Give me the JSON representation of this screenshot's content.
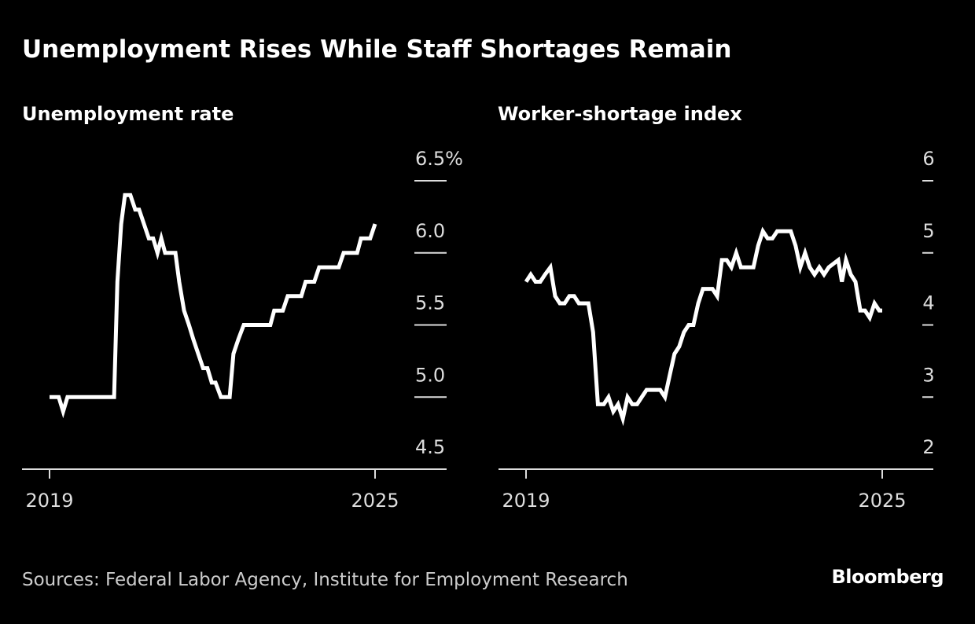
{
  "title": "Unemployment Rises While Staff Shortages Remain",
  "source": "Sources: Federal Labor Agency, Institute for Employment Research",
  "logo": "Bloomberg",
  "colors": {
    "background": "#000000",
    "line": "#ffffff",
    "axis": "#dddddd"
  },
  "chart_data": [
    {
      "type": "line",
      "title": "Unemployment rate",
      "ylim": [
        4.5,
        6.5
      ],
      "yticks": [
        "6.5%",
        "6.0",
        "5.5",
        "5.0",
        "4.5"
      ],
      "ytick_values": [
        6.5,
        6.0,
        5.5,
        5.0,
        4.5
      ],
      "xlim": [
        2019,
        2025
      ],
      "xticks": [
        "2019",
        "2025"
      ],
      "xtick_values": [
        2019,
        2025
      ],
      "series": [
        {
          "name": "Unemployment rate",
          "x": [
            2019.0,
            2019.17,
            2019.25,
            2019.33,
            2020.19,
            2020.25,
            2020.32,
            2020.39,
            2020.49,
            2020.58,
            2020.65,
            2020.74,
            2020.83,
            2020.91,
            2020.99,
            2021.06,
            2021.13,
            2021.32,
            2021.39,
            2021.48,
            2021.57,
            2021.65,
            2021.74,
            2021.83,
            2021.91,
            2021.99,
            2022.06,
            2022.16,
            2022.32,
            2022.39,
            2022.48,
            2022.58,
            2023.07,
            2023.14,
            2023.3,
            2023.39,
            2023.64,
            2023.72,
            2023.88,
            2023.97,
            2024.33,
            2024.42,
            2024.67,
            2024.74,
            2024.91,
            2025.0
          ],
          "y": [
            5.0,
            5.0,
            4.9,
            5.0,
            5.0,
            5.8,
            6.2,
            6.4,
            6.4,
            6.3,
            6.3,
            6.2,
            6.1,
            6.1,
            6.0,
            6.1,
            6.0,
            6.0,
            5.8,
            5.6,
            5.5,
            5.4,
            5.3,
            5.2,
            5.2,
            5.1,
            5.1,
            5.0,
            5.0,
            5.3,
            5.4,
            5.5,
            5.5,
            5.6,
            5.6,
            5.7,
            5.7,
            5.8,
            5.8,
            5.9,
            5.9,
            6.0,
            6.0,
            6.1,
            6.1,
            6.2
          ]
        }
      ]
    },
    {
      "type": "line",
      "title": "Worker-shortage index",
      "ylim": [
        2,
        6
      ],
      "yticks": [
        "6",
        "5",
        "4",
        "3",
        "2"
      ],
      "ytick_values": [
        6,
        5,
        4,
        3,
        2
      ],
      "xlim": [
        2019,
        2025
      ],
      "xticks": [
        "2019",
        "2025"
      ],
      "xtick_values": [
        2019,
        2025
      ],
      "series": [
        {
          "name": "Worker-shortage index",
          "x": [
            2019.0,
            2019.08,
            2019.16,
            2019.24,
            2019.32,
            2019.41,
            2019.49,
            2019.57,
            2019.65,
            2019.73,
            2019.81,
            2019.89,
            2020.05,
            2020.13,
            2020.21,
            2020.31,
            2020.39,
            2020.47,
            2020.55,
            2020.63,
            2020.71,
            2020.79,
            2020.87,
            2020.95,
            2021.03,
            2021.19,
            2021.26,
            2021.34,
            2021.42,
            2021.5,
            2021.58,
            2021.66,
            2021.74,
            2021.82,
            2021.9,
            2021.98,
            2022.14,
            2022.22,
            2022.3,
            2022.38,
            2022.46,
            2022.54,
            2022.62,
            2022.83,
            2022.91,
            2022.99,
            2023.07,
            2023.15,
            2023.23,
            2023.46,
            2023.54,
            2023.62,
            2023.7,
            2023.78,
            2023.86,
            2023.94,
            2024.02,
            2024.1,
            2024.26,
            2024.32,
            2024.39,
            2024.47,
            2024.55,
            2024.63,
            2024.71,
            2024.79,
            2024.87,
            2024.95,
            2025.0
          ],
          "y": [
            4.6,
            4.7,
            4.6,
            4.6,
            4.7,
            4.8,
            4.4,
            4.3,
            4.3,
            4.4,
            4.4,
            4.3,
            4.3,
            3.9,
            2.9,
            2.9,
            3.0,
            2.8,
            2.9,
            2.7,
            3.0,
            2.9,
            2.9,
            3.0,
            3.1,
            3.1,
            3.1,
            3.0,
            3.3,
            3.6,
            3.7,
            3.9,
            4.0,
            4.0,
            4.3,
            4.5,
            4.5,
            4.4,
            4.9,
            4.9,
            4.8,
            5.0,
            4.8,
            4.8,
            5.1,
            5.3,
            5.2,
            5.2,
            5.3,
            5.3,
            5.1,
            4.8,
            5.0,
            4.8,
            4.7,
            4.8,
            4.7,
            4.8,
            4.9,
            4.6,
            4.9,
            4.7,
            4.6,
            4.2,
            4.2,
            4.1,
            4.3,
            4.2,
            4.2
          ]
        }
      ]
    }
  ]
}
